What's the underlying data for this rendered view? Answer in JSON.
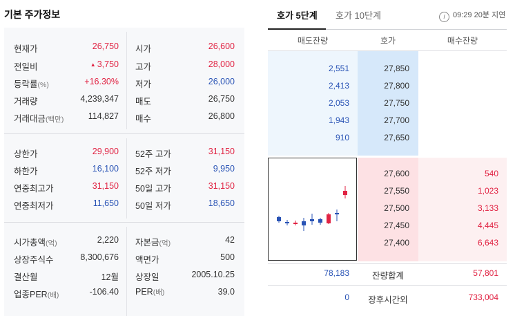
{
  "left": {
    "title": "기본 주가정보",
    "rows": [
      {
        "label": "현재가",
        "unit": "",
        "value": "26,750",
        "value_color": "up",
        "label2": "시가",
        "unit2": "",
        "value2": "26,600",
        "value2_color": "up"
      },
      {
        "label": "전일비",
        "unit": "",
        "value": "3,750",
        "value_prefix": "▲",
        "value_color": "up",
        "label2": "고가",
        "unit2": "",
        "value2": "28,000",
        "value2_color": "up"
      },
      {
        "label": "등락률",
        "unit": "(%)",
        "value": "+16.30%",
        "value_color": "up",
        "label2": "저가",
        "unit2": "",
        "value2": "26,000",
        "value2_color": "down"
      },
      {
        "label": "거래량",
        "unit": "",
        "value": "4,239,347",
        "value_color": "neutral",
        "label2": "매도",
        "unit2": "",
        "value2": "26,750",
        "value2_color": "neutral"
      },
      {
        "label": "거래대금",
        "unit": "(백만)",
        "value": "114,827",
        "value_color": "neutral",
        "label2": "매수",
        "unit2": "",
        "value2": "26,800",
        "value2_color": "neutral"
      },
      {
        "label": "상한가",
        "unit": "",
        "value": "29,900",
        "value_color": "up",
        "label2": "52주 고가",
        "unit2": "",
        "value2": "31,150",
        "value2_color": "up"
      },
      {
        "label": "하한가",
        "unit": "",
        "value": "16,100",
        "value_color": "down",
        "label2": "52주 저가",
        "unit2": "",
        "value2": "9,950",
        "value2_color": "down"
      },
      {
        "label": "연중최고가",
        "unit": "",
        "value": "31,150",
        "value_color": "up",
        "label2": "50일 고가",
        "unit2": "",
        "value2": "31,150",
        "value2_color": "up"
      },
      {
        "label": "연중최저가",
        "unit": "",
        "value": "11,650",
        "value_color": "down",
        "label2": "50일 저가",
        "unit2": "",
        "value2": "18,650",
        "value2_color": "down"
      },
      {
        "label": "시가총액",
        "unit": "(억)",
        "value": "2,220",
        "value_color": "neutral",
        "label2": "자본금",
        "unit2": "(억)",
        "value2": "42",
        "value2_color": "neutral"
      },
      {
        "label": "상장주식수",
        "unit": "",
        "value": "8,300,676",
        "value_color": "neutral",
        "label2": "액면가",
        "unit2": "",
        "value2": "500",
        "value2_color": "neutral"
      },
      {
        "label": "결산월",
        "unit": "",
        "value": "12월",
        "value_color": "neutral",
        "label2": "상장일",
        "unit2": "",
        "value2": "2005.10.25",
        "value2_color": "neutral"
      },
      {
        "label": "업종PER",
        "unit": "(배)",
        "value": "-106.40",
        "value_color": "neutral",
        "label2": "PER",
        "unit2": "(배)",
        "value2": "39.0",
        "value2_color": "neutral"
      }
    ]
  },
  "right": {
    "tabs": [
      {
        "label": "호가 5단계",
        "active": true
      },
      {
        "label": "호가 10단계",
        "active": false
      }
    ],
    "info_icon": "i",
    "delay_text": "09:29 20분 지연",
    "headers": {
      "sell": "매도잔량",
      "price": "호가",
      "buy": "매수잔량"
    },
    "sell_levels": [
      {
        "volume": "2,551",
        "price": "27,850"
      },
      {
        "volume": "2,413",
        "price": "27,800"
      },
      {
        "volume": "2,053",
        "price": "27,750"
      },
      {
        "volume": "1,943",
        "price": "27,700"
      },
      {
        "volume": "910",
        "price": "27,650"
      }
    ],
    "buy_levels": [
      {
        "price": "27,600",
        "volume": "540"
      },
      {
        "price": "27,550",
        "volume": "1,023"
      },
      {
        "price": "27,500",
        "volume": "3,133"
      },
      {
        "price": "27,450",
        "volume": "4,445"
      },
      {
        "price": "27,400",
        "volume": "6,643"
      }
    ],
    "total": {
      "sell": "78,183",
      "label": "잔량합계",
      "buy": "57,801"
    },
    "after_hours": {
      "sell": "0",
      "label": "장후시간외",
      "buy": "733,004"
    },
    "colors": {
      "up": "#e12343",
      "down": "#2953b5"
    }
  }
}
